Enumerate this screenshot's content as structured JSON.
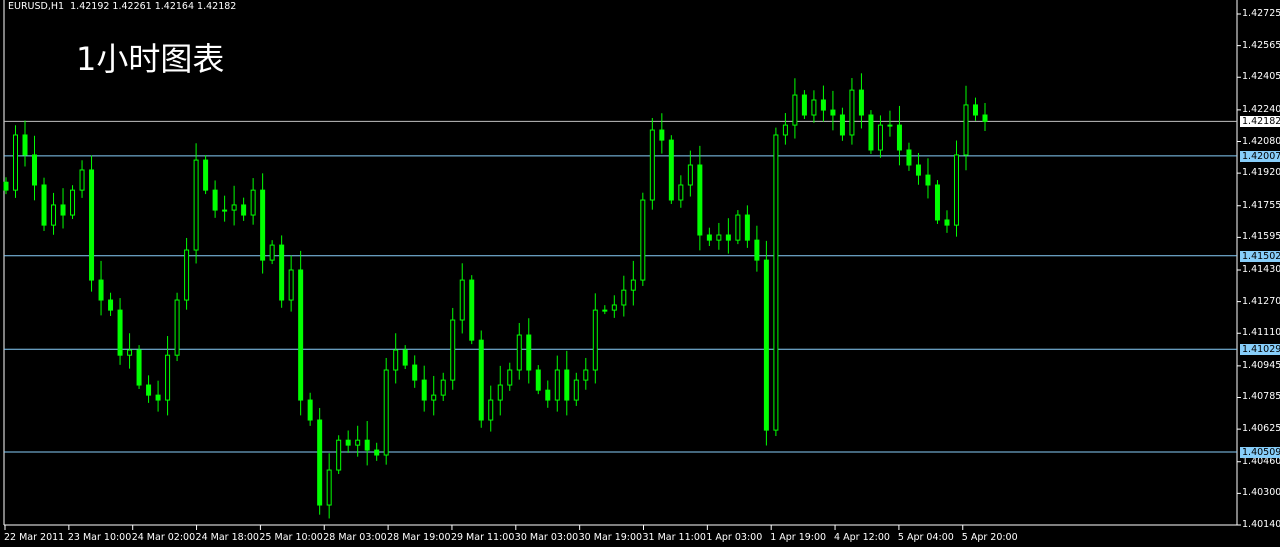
{
  "header": {
    "symbol": "EURUSD,H1",
    "ohlc": "1.42192 1.42261 1.42164 1.42182"
  },
  "overlay_title": "1小时图表",
  "colors": {
    "background": "#000000",
    "candle": "#00ff00",
    "axis": "#ffffff",
    "level_line": "#87cefa",
    "current_price_label": "#ffffff"
  },
  "chart_data": {
    "type": "candlestick",
    "title": "EURUSD,H1",
    "ylim": [
      1.4014,
      1.42725
    ],
    "y_ticks": [
      "1.42725",
      "1.42565",
      "1.42405",
      "1.42240",
      "1.42080",
      "1.41920",
      "1.41755",
      "1.41595",
      "1.41430",
      "1.41270",
      "1.41110",
      "1.40945",
      "1.40785",
      "1.40625",
      "1.40460",
      "1.40300",
      "1.40140"
    ],
    "x_ticks": [
      "22 Mar 2011",
      "23 Mar 10:00",
      "24 Mar 02:00",
      "24 Mar 18:00",
      "25 Mar 10:00",
      "28 Mar 03:00",
      "28 Mar 19:00",
      "29 Mar 11:00",
      "30 Mar 03:00",
      "30 Mar 19:00",
      "31 Mar 11:00",
      "1 Apr 03:00",
      "1 Apr 19:00",
      "4 Apr 12:00",
      "5 Apr 04:00",
      "5 Apr 20:00"
    ],
    "current_price": "1.42182",
    "levels": [
      "1.42007",
      "1.41502",
      "1.41029",
      "1.40509"
    ],
    "closes": [
      1.41834,
      1.42113,
      1.42012,
      1.4186,
      1.41657,
      1.41759,
      1.41708,
      1.41834,
      1.41936,
      1.41379,
      1.41278,
      1.41227,
      1.40999,
      1.41025,
      1.40848,
      1.40797,
      1.40772,
      1.40999,
      1.41278,
      1.41531,
      1.41986,
      1.41834,
      1.41733,
      1.41733,
      1.41759,
      1.41708,
      1.41834,
      1.4148,
      1.41556,
      1.41278,
      1.4143,
      1.40772,
      1.40671,
      1.40241,
      1.40418,
      1.40569,
      1.40544,
      1.40569,
      1.40519,
      1.40494,
      1.40924,
      1.41025,
      1.40949,
      1.40873,
      1.40772,
      1.40797,
      1.40873,
      1.41177,
      1.41379,
      1.41075,
      1.40671,
      1.40772,
      1.40848,
      1.40924,
      1.41101,
      1.40924,
      1.40822,
      1.40772,
      1.40924,
      1.40772,
      1.40873,
      1.40924,
      1.41227,
      1.41227,
      1.41253,
      1.41328,
      1.41379,
      1.41784,
      1.42138,
      1.42087,
      1.41784,
      1.4186,
      1.41961,
      1.41607,
      1.41581,
      1.41607,
      1.41581,
      1.41708,
      1.41581,
      1.4148,
      1.4062,
      1.42113,
      1.42163,
      1.42315,
      1.42214,
      1.4229,
      1.42239,
      1.42214,
      1.42113,
      1.4234,
      1.42214,
      1.42037,
      1.42163,
      1.42163,
      1.42037,
      1.41961,
      1.4191,
      1.4186,
      1.41683,
      1.41657,
      1.42012,
      1.42265,
      1.42214,
      1.42182
    ]
  }
}
